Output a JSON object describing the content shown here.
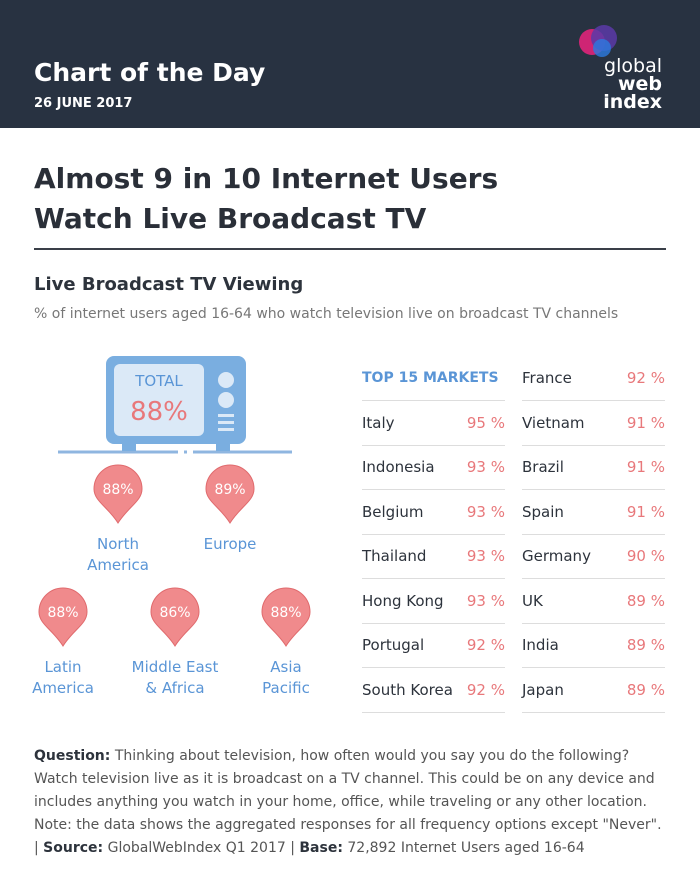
{
  "header": {
    "title": "Chart of the Day",
    "date": "26 JUNE 2017",
    "logo": [
      "global",
      "web",
      "index"
    ]
  },
  "headline": [
    "Almost 9 in 10 Internet Users",
    "Watch Live Broadcast TV"
  ],
  "section": {
    "title": "Live Broadcast TV Viewing",
    "subtitle": "% of internet users aged 16-64 who watch television live on broadcast TV channels"
  },
  "tv": {
    "label": "TOTAL",
    "value": "88%"
  },
  "regions": [
    {
      "name": [
        "North",
        "America"
      ],
      "value": "88%"
    },
    {
      "name": [
        "Europe"
      ],
      "value": "89%"
    },
    {
      "name": [
        "Latin",
        "America"
      ],
      "value": "88%"
    },
    {
      "name": [
        "Middle East",
        "& Africa"
      ],
      "value": "86%"
    },
    {
      "name": [
        "Asia",
        "Pacific"
      ],
      "value": "88%"
    }
  ],
  "markets": {
    "heading": "TOP 15 MARKETS",
    "rows": [
      {
        "country": "Italy",
        "value": "95 %"
      },
      {
        "country": "Indonesia",
        "value": "93 %"
      },
      {
        "country": "Belgium",
        "value": "93 %"
      },
      {
        "country": "Thailand",
        "value": "93 %"
      },
      {
        "country": "Hong Kong",
        "value": "93 %"
      },
      {
        "country": "Portugal",
        "value": "92 %"
      },
      {
        "country": "South Korea",
        "value": "92 %"
      },
      {
        "country": "France",
        "value": "92 %"
      },
      {
        "country": "Vietnam",
        "value": "91 %"
      },
      {
        "country": "Brazil",
        "value": "91 %"
      },
      {
        "country": "Spain",
        "value": "91 %"
      },
      {
        "country": "Germany",
        "value": "90 %"
      },
      {
        "country": "UK",
        "value": "89 %"
      },
      {
        "country": "India",
        "value": "89 %"
      },
      {
        "country": "Japan",
        "value": "89 %"
      }
    ]
  },
  "footnote": [
    {
      "text": "Question:",
      "bold": true
    },
    {
      "text": " Thinking about television, how often would you say you do the following? Watch television live as it is broadcast on a TV channel. This could be on any device and includes anything you watch in your home, office, while traveling or any other location. Note: the data shows the aggregated responses for all frequency options except \"Never\". | ",
      "bold": false
    },
    {
      "text": "Source:",
      "bold": true
    },
    {
      "text": " GlobalWebIndex Q1 2017 | ",
      "bold": false
    },
    {
      "text": "Base:",
      "bold": true
    },
    {
      "text": " 72,892 Internet Users aged 16-64",
      "bold": false
    }
  ]
}
